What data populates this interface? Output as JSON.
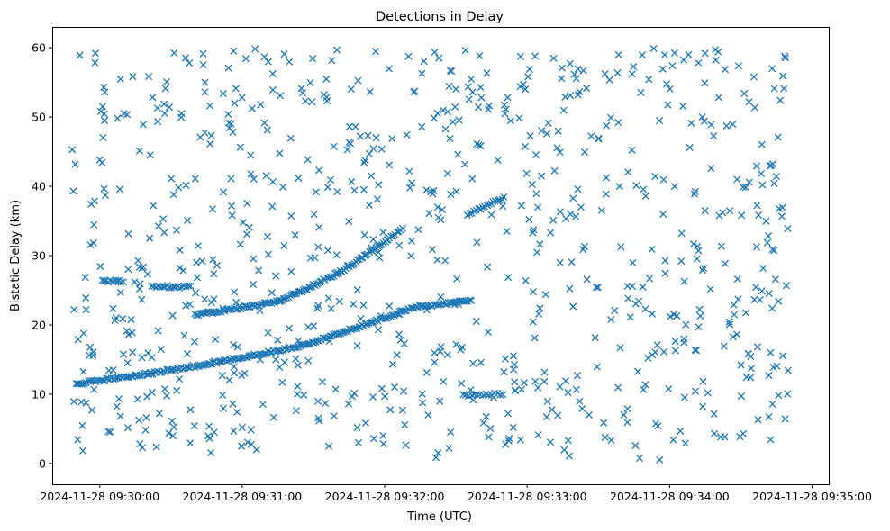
{
  "chart_data": {
    "type": "scatter",
    "title": "Detections in Delay",
    "xlabel": "Time (UTC)",
    "ylabel": "Bistatic Delay (km)",
    "x_unit": "seconds since 2024-11-28 09:30:00",
    "xlim": [
      -20,
      307
    ],
    "ylim": [
      -3,
      63
    ],
    "x_ticks": [
      {
        "value": 0,
        "label": "2024-11-28 09:30:00"
      },
      {
        "value": 60,
        "label": "2024-11-28 09:31:00"
      },
      {
        "value": 120,
        "label": "2024-11-28 09:32:00"
      },
      {
        "value": 180,
        "label": "2024-11-28 09:33:00"
      },
      {
        "value": 240,
        "label": "2024-11-28 09:34:00"
      },
      {
        "value": 300,
        "label": "2024-11-28 09:35:00"
      }
    ],
    "y_ticks": [
      {
        "value": 0,
        "label": "0"
      },
      {
        "value": 10,
        "label": "10"
      },
      {
        "value": 20,
        "label": "20"
      },
      {
        "value": 30,
        "label": "30"
      },
      {
        "value": 40,
        "label": "40"
      },
      {
        "value": 50,
        "label": "50"
      },
      {
        "value": 60,
        "label": "60"
      }
    ],
    "marker": "x",
    "color": "#1f77b4",
    "data_x_range": [
      -12,
      290
    ],
    "tracks": [
      {
        "name": "track-1",
        "x_start": -10,
        "x_end": 85,
        "y_start": 11.5,
        "y_end": 17.0,
        "curve": 0.25,
        "step": 0.75
      },
      {
        "name": "track-2",
        "x_start": 85,
        "x_end": 130,
        "y_start": 17.0,
        "y_end": 22.3,
        "curve": 0.1,
        "step": 0.75
      },
      {
        "name": "track-3",
        "x_start": 40,
        "x_end": 76,
        "y_start": 21.5,
        "y_end": 23.5,
        "curve": 0.2,
        "step": 0.75
      },
      {
        "name": "track-4",
        "x_start": 76,
        "x_end": 103,
        "y_start": 23.5,
        "y_end": 28.0,
        "curve": 0.1,
        "step": 0.7
      },
      {
        "name": "track-5",
        "x_start": 103,
        "x_end": 118,
        "y_start": 28.0,
        "y_end": 31.5,
        "curve": 0.0,
        "step": 0.7
      },
      {
        "name": "track-6",
        "x_start": 118,
        "x_end": 128,
        "y_start": 31.5,
        "y_end": 34.0,
        "curve": 0.0,
        "step": 0.8
      },
      {
        "name": "track-7",
        "x_start": 131,
        "x_end": 157,
        "y_start": 22.5,
        "y_end": 23.5,
        "curve": 0.0,
        "step": 0.75
      },
      {
        "name": "track-8",
        "x_start": 155,
        "x_end": 171,
        "y_start": 36.0,
        "y_end": 38.5,
        "curve": 0.0,
        "step": 0.9
      },
      {
        "name": "track-9",
        "x_start": 153,
        "x_end": 170,
        "y_start": 9.8,
        "y_end": 10.1,
        "curve": 0.0,
        "step": 1.2
      },
      {
        "name": "track-10",
        "x_start": 22,
        "x_end": 39,
        "y_start": 25.5,
        "y_end": 25.5,
        "curve": 0.0,
        "step": 0.9
      },
      {
        "name": "track-11",
        "x_start": 1,
        "x_end": 10,
        "y_start": 26.3,
        "y_end": 26.3,
        "curve": 0.0,
        "step": 0.8
      }
    ],
    "clutter": {
      "count": 820,
      "seed": 20241128,
      "y_range": [
        0.5,
        60
      ]
    }
  }
}
